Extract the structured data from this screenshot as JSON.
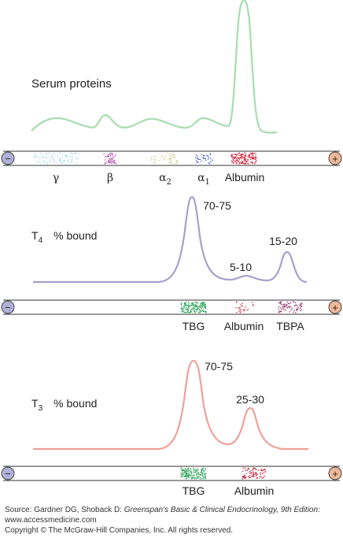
{
  "panels": [
    {
      "id": "serum",
      "title": "Serum proteins",
      "title_sub": "",
      "title_suffix": "",
      "bands": [
        {
          "label": "γ",
          "sub": ""
        },
        {
          "label": "β",
          "sub": ""
        },
        {
          "label": "α",
          "sub": "2"
        },
        {
          "label": "α",
          "sub": "1"
        },
        {
          "label": "Albumin",
          "sub": ""
        }
      ],
      "band_colors": [
        "#9ad8e0",
        "#b048b0",
        "#c8c890",
        "#4050c8",
        "#d02840"
      ],
      "curve_color": "#a8dcb0",
      "peak_labels": []
    },
    {
      "id": "t4",
      "title": "T",
      "title_sub": "4",
      "title_suffix": "% bound",
      "bands": [
        {
          "label": "TBG",
          "sub": ""
        },
        {
          "label": "Albumin",
          "sub": ""
        },
        {
          "label": "TBPA",
          "sub": ""
        }
      ],
      "band_colors": [
        "#38a860",
        "#d03048",
        "#903068"
      ],
      "curve_color": "#a8a0cc",
      "peak_labels": [
        "70-75",
        "5-10",
        "15-20"
      ]
    },
    {
      "id": "t3",
      "title": "T",
      "title_sub": "3",
      "title_suffix": "% bound",
      "bands": [
        {
          "label": "TBG",
          "sub": ""
        },
        {
          "label": "Albumin",
          "sub": ""
        }
      ],
      "band_colors": [
        "#38a860",
        "#c83048"
      ],
      "curve_color": "#f0a098",
      "peak_labels": [
        "70-75",
        "25-30"
      ]
    }
  ],
  "electrodes": {
    "minus": "−",
    "plus": "+",
    "minus_color": "#b0b0d8",
    "plus_color": "#f0b898"
  },
  "footer": {
    "source_prefix": "Source: Gardner DG, Shoback D: ",
    "book_title": "Greenspan's Basic & Clinical Endocrinology, 9th Edition",
    "source_suffix": ": www.accessmedicine.com",
    "copyright": "Copyright © The McGraw-Hill Companies, Inc. All rights reserved."
  }
}
